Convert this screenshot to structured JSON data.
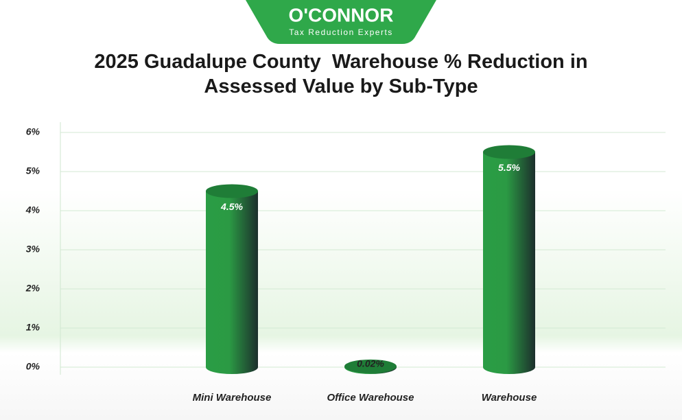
{
  "chart_data": {
    "type": "bar",
    "brand": "O'CONNOR",
    "brand_tagline": "Tax Reduction Experts",
    "title": "2025 Guadalupe County  Warehouse % Reduction in Assessed Value by Sub-Type",
    "categories": [
      "Mini Warehouse",
      "Office Warehouse",
      "Warehouse"
    ],
    "values": [
      4.5,
      0.02,
      5.5
    ],
    "value_labels": [
      "4.5%",
      "0.02%",
      "5.5%"
    ],
    "color": "#2a9d45",
    "ylim": [
      0,
      6
    ],
    "yticks": [
      {
        "value": 0,
        "label": "0%"
      },
      {
        "value": 1,
        "label": "1%"
      },
      {
        "value": 2,
        "label": "2%"
      },
      {
        "value": 3,
        "label": "3%"
      },
      {
        "value": 4,
        "label": "4%"
      },
      {
        "value": 5,
        "label": "5%"
      },
      {
        "value": 6,
        "label": "6%"
      }
    ],
    "grid": true
  }
}
